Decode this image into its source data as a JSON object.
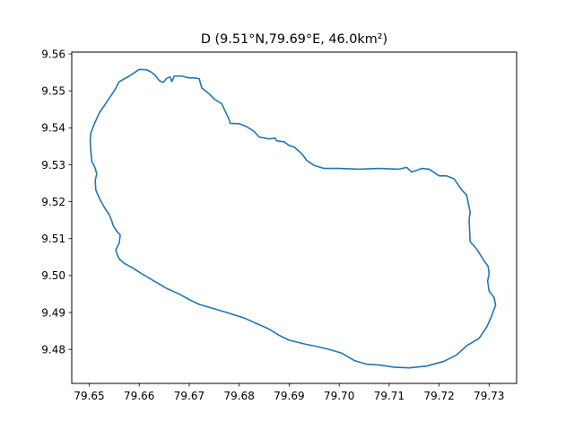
{
  "chart_data": {
    "type": "line",
    "title": "D (9.51°N,79.69°E,  46.0km²)",
    "xlabel": "",
    "ylabel": "",
    "xlim": [
      79.6465,
      79.7355
    ],
    "ylim": [
      9.4708,
      9.5605
    ],
    "x_ticks": [
      "79.65",
      "79.66",
      "79.67",
      "79.68",
      "79.69",
      "79.70",
      "79.71",
      "79.72",
      "79.73"
    ],
    "y_ticks": [
      "9.48",
      "9.49",
      "9.50",
      "9.51",
      "9.52",
      "9.53",
      "9.54",
      "9.55",
      "9.56"
    ],
    "grid": false,
    "series": [
      {
        "color": "#1f77b4",
        "x": [
          79.66,
          79.6615,
          79.6625,
          79.6632,
          79.664,
          79.6648,
          79.6655,
          79.6662,
          79.6665,
          79.667,
          79.6685,
          79.67,
          79.671,
          79.672,
          79.6725,
          79.674,
          79.675,
          79.6765,
          79.678,
          79.6782,
          79.68,
          79.6815,
          79.683,
          79.684,
          79.686,
          79.6872,
          79.6875,
          79.689,
          79.69,
          79.691,
          79.6925,
          79.6935,
          79.695,
          79.697,
          79.7,
          79.704,
          79.708,
          79.712,
          79.7135,
          79.7145,
          79.7165,
          79.718,
          79.72,
          79.7215,
          79.723,
          79.7245,
          79.7255,
          79.7258,
          79.7262,
          79.726,
          79.7262,
          79.7275,
          79.729,
          79.7298,
          79.73,
          79.7297,
          79.73,
          79.731,
          79.7313,
          79.7305,
          79.7295,
          79.728,
          79.7255,
          79.7235,
          79.721,
          79.7175,
          79.714,
          79.711,
          79.708,
          79.7055,
          79.703,
          79.7005,
          79.698,
          79.6955,
          79.693,
          79.69,
          79.688,
          79.686,
          79.6835,
          79.681,
          79.678,
          79.675,
          79.672,
          79.67,
          79.668,
          79.6655,
          79.663,
          79.6605,
          79.6585,
          79.657,
          79.656,
          79.6555,
          79.6553,
          79.656,
          79.6562,
          79.6555,
          79.6548,
          79.6545,
          79.654,
          79.653,
          79.652,
          79.6513,
          79.6512,
          79.6515,
          79.6512,
          79.6505,
          79.6503,
          79.6502,
          79.6503,
          79.651,
          79.652,
          79.6535,
          79.655,
          79.6555,
          79.656,
          79.658,
          79.66
        ],
        "y": [
          9.5558,
          9.5557,
          9.555,
          9.5542,
          9.5528,
          9.5523,
          9.5534,
          9.5538,
          9.5525,
          9.554,
          9.554,
          9.5535,
          9.5535,
          9.5533,
          9.5508,
          9.5492,
          9.5478,
          9.5465,
          9.5422,
          9.5412,
          9.5411,
          9.5403,
          9.539,
          9.5375,
          9.537,
          9.5372,
          9.5365,
          9.5362,
          9.5352,
          9.5348,
          9.533,
          9.5312,
          9.5298,
          9.529,
          9.529,
          9.5288,
          9.529,
          9.5288,
          9.5293,
          9.528,
          9.529,
          9.5288,
          9.527,
          9.527,
          9.5262,
          9.5232,
          9.5218,
          9.5198,
          9.5172,
          9.515,
          9.5092,
          9.5072,
          9.504,
          9.5025,
          9.5005,
          9.4985,
          9.4958,
          9.494,
          9.492,
          9.489,
          9.486,
          9.483,
          9.481,
          9.4785,
          9.4768,
          9.4755,
          9.475,
          9.4752,
          9.4758,
          9.476,
          9.477,
          9.479,
          9.48,
          9.4808,
          9.4815,
          9.4825,
          9.4838,
          9.4855,
          9.487,
          9.4885,
          9.4898,
          9.491,
          9.4922,
          9.4935,
          9.495,
          9.4965,
          9.4985,
          9.5005,
          9.5022,
          9.5033,
          9.5045,
          9.506,
          9.507,
          9.5088,
          9.511,
          9.512,
          9.5135,
          9.5148,
          9.5165,
          9.5185,
          9.521,
          9.5232,
          9.5258,
          9.5275,
          9.529,
          9.531,
          9.534,
          9.5365,
          9.5385,
          9.541,
          9.544,
          9.547,
          9.55,
          9.5512,
          9.5525,
          9.554,
          9.5558
        ]
      }
    ]
  }
}
